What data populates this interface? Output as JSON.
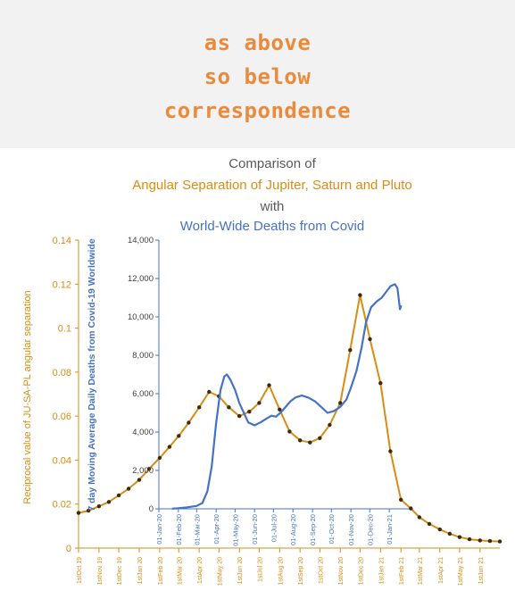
{
  "header": {
    "lines": [
      "as above",
      "so below",
      "correspondence"
    ]
  },
  "colors": {
    "orange": "#d98c12",
    "blue": "#4472c4",
    "header_text": "#e98a3c",
    "title_gray": "#595959",
    "header_bg": "#f2f2f2"
  },
  "chart_data": {
    "type": "line",
    "title_lines": [
      {
        "text": "Comparison of",
        "color": "gray"
      },
      {
        "text": "Angular Separation of Jupiter, Saturn and Pluto",
        "color": "orange"
      },
      {
        "text": "with",
        "color": "gray"
      },
      {
        "text": "World-Wide Deaths from Covid",
        "color": "blue"
      }
    ],
    "primary_axis": {
      "label": "Reciprocal value of JU-SA-PL angular separation",
      "ylim": [
        0,
        0.14
      ],
      "ticks": [
        "0",
        "0.02",
        "0.04",
        "0.06",
        "0.08",
        "0.1",
        "0.12",
        "0.14"
      ],
      "x_tick_labels": [
        "1stOct 19",
        "1stNov 19",
        "1stDec 19",
        "1stJan 20",
        "1stFeb 20",
        "1stMar 20",
        "1stApr 20",
        "1stMay 20",
        "1stJun 20",
        "1stJul 20",
        "1stAug 20",
        "1stSep 20",
        "1stOct 20",
        "1stNov 20",
        "1stDec 20",
        "1stJan 21",
        "1stFeb 21",
        "1stMar 21",
        "1stApr 21",
        "1stMay 21",
        "1stJun 21"
      ]
    },
    "secondary_axis": {
      "label": "7 day Moving Average Daily Deaths from Covid-19 Worldwide",
      "ylim": [
        0,
        14000
      ],
      "ticks": [
        "0",
        "2,000",
        "4,000",
        "6,000",
        "8,000",
        "10,000",
        "12,000",
        "14,000"
      ],
      "x_tick_labels": [
        "01-Jan-20",
        "01-Feb-20",
        "01-Mar-20",
        "01-Apr-20",
        "01-May-20",
        "01-Jun-20",
        "01-Jul-20",
        "01-Aug-20",
        "01-Sep-20",
        "01-Oct-20",
        "01-Nov-20",
        "01-Dec-20",
        "01-Jan-21"
      ]
    },
    "series": [
      {
        "axis": "primary",
        "color": "orange",
        "markers": true,
        "x": [
          "2019-10-01",
          "2019-10-16",
          "2019-11-01",
          "2019-11-16",
          "2019-12-01",
          "2019-12-16",
          "2020-01-01",
          "2020-01-16",
          "2020-02-01",
          "2020-02-16",
          "2020-03-01",
          "2020-03-16",
          "2020-04-01",
          "2020-04-16",
          "2020-05-01",
          "2020-05-16",
          "2020-06-01",
          "2020-06-16",
          "2020-07-01",
          "2020-07-16",
          "2020-08-01",
          "2020-08-16",
          "2020-09-01",
          "2020-09-16",
          "2020-10-01",
          "2020-10-16",
          "2020-11-01",
          "2020-11-16",
          "2020-12-01",
          "2020-12-16",
          "2021-01-01",
          "2021-01-16",
          "2021-02-01",
          "2021-02-16",
          "2021-03-01",
          "2021-03-16",
          "2021-04-01",
          "2021-04-16",
          "2021-05-01",
          "2021-05-16",
          "2021-06-01",
          "2021-06-16",
          "2021-07-01"
        ],
        "y": [
          0.016,
          0.017,
          0.019,
          0.021,
          0.024,
          0.027,
          0.031,
          0.036,
          0.041,
          0.046,
          0.051,
          0.057,
          0.064,
          0.071,
          0.069,
          0.064,
          0.06,
          0.062,
          0.066,
          0.074,
          0.063,
          0.053,
          0.049,
          0.048,
          0.05,
          0.056,
          0.066,
          0.09,
          0.115,
          0.095,
          0.075,
          0.044,
          0.022,
          0.018,
          0.014,
          0.011,
          0.0085,
          0.0065,
          0.005,
          0.004,
          0.0035,
          0.0032,
          0.003
        ]
      },
      {
        "axis": "secondary",
        "color": "blue",
        "markers": false,
        "x": [
          "2020-01-22",
          "2020-02-01",
          "2020-02-15",
          "2020-03-01",
          "2020-03-10",
          "2020-03-18",
          "2020-03-25",
          "2020-04-01",
          "2020-04-08",
          "2020-04-14",
          "2020-04-18",
          "2020-04-24",
          "2020-05-01",
          "2020-05-08",
          "2020-05-15",
          "2020-05-22",
          "2020-06-01",
          "2020-06-10",
          "2020-06-20",
          "2020-06-28",
          "2020-07-05",
          "2020-07-12",
          "2020-07-20",
          "2020-07-28",
          "2020-08-05",
          "2020-08-15",
          "2020-08-25",
          "2020-09-05",
          "2020-09-15",
          "2020-09-25",
          "2020-10-05",
          "2020-10-15",
          "2020-10-25",
          "2020-11-01",
          "2020-11-10",
          "2020-11-18",
          "2020-11-25",
          "2020-12-03",
          "2020-12-12",
          "2020-12-20",
          "2020-12-27",
          "2021-01-03",
          "2021-01-10",
          "2021-01-14",
          "2021-01-18",
          "2021-01-20"
        ],
        "y": [
          10,
          30,
          80,
          150,
          300,
          900,
          2200,
          4500,
          6200,
          6900,
          7000,
          6700,
          6200,
          5500,
          5000,
          4500,
          4350,
          4500,
          4700,
          4850,
          4800,
          5000,
          5300,
          5600,
          5800,
          5900,
          5800,
          5600,
          5300,
          5000,
          5100,
          5300,
          5700,
          6300,
          7200,
          8400,
          9700,
          10500,
          10800,
          11000,
          11300,
          11600,
          11700,
          11500,
          10400,
          10600
        ]
      }
    ]
  }
}
